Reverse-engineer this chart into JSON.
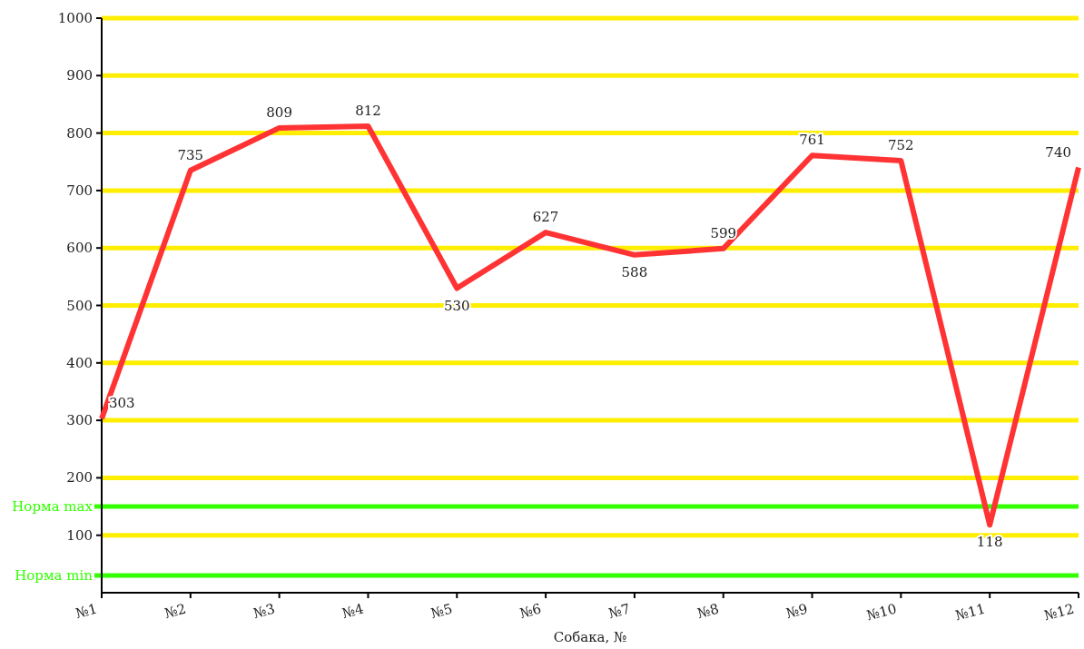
{
  "chart_data": {
    "type": "line",
    "xlabel": "Собака, №",
    "categories": [
      "№1",
      "№2",
      "№3",
      "№4",
      "№5",
      "№6",
      "№7",
      "№8",
      "№9",
      "№10",
      "№11",
      "№12"
    ],
    "series": [
      {
        "color": "#ff3333",
        "values": [
          303,
          735,
          809,
          812,
          530,
          627,
          588,
          599,
          761,
          752,
          118,
          740
        ]
      }
    ],
    "ylim": [
      0,
      1000
    ],
    "yticks": [
      100,
      200,
      300,
      400,
      500,
      600,
      700,
      800,
      900,
      1000
    ],
    "grid": "y",
    "data_labels": true,
    "marker": "none",
    "line_style": "solid",
    "ref_lines": [
      {
        "axis": "y",
        "value": 150,
        "label": "Норма max",
        "color": "#33ff00"
      },
      {
        "axis": "y",
        "value": 30,
        "label": "Норма min",
        "color": "#33ff00"
      }
    ]
  }
}
